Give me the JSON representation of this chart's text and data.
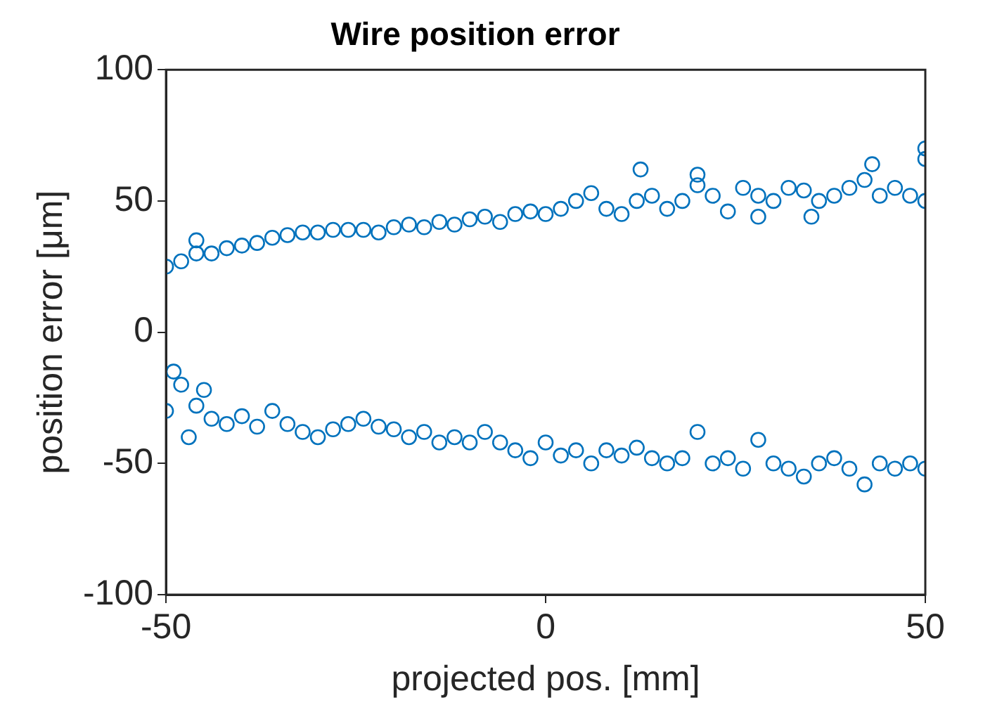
{
  "chart_data": {
    "type": "scatter",
    "title": "Wire position error",
    "xlabel": "projected pos. [mm]",
    "ylabel": "position error [μm]",
    "xlim": [
      -50,
      50
    ],
    "xticks": [
      -50,
      0,
      50
    ],
    "ylim": [
      -100,
      100
    ],
    "yticks": [
      -100,
      -50,
      0,
      50,
      100
    ],
    "grid": false,
    "legend": false,
    "marker": "circle",
    "series": [
      {
        "color": "#0072bd",
        "x": [
          -50,
          -48,
          -46,
          -46,
          -44,
          -42,
          -40,
          -38,
          -36,
          -34,
          -32,
          -30,
          -28,
          -26,
          -24,
          -22,
          -20,
          -18,
          -16,
          -14,
          -12,
          -10,
          -8,
          -6,
          -4,
          -2,
          0,
          2,
          4,
          6,
          8,
          10,
          12,
          12.5,
          14,
          16,
          18,
          20,
          20,
          22,
          24,
          26,
          28,
          28,
          30,
          32,
          34,
          35,
          36,
          38,
          40,
          42,
          43,
          44,
          46,
          48,
          50,
          50,
          50
        ],
        "values": [
          25,
          27,
          30,
          35,
          30,
          32,
          33,
          34,
          36,
          37,
          38,
          38,
          39,
          39,
          39,
          38,
          40,
          41,
          40,
          42,
          41,
          43,
          44,
          42,
          45,
          46,
          45,
          47,
          50,
          53,
          47,
          45,
          50,
          62,
          52,
          47,
          50,
          56,
          60,
          52,
          46,
          55,
          52,
          44,
          50,
          55,
          54,
          44,
          50,
          52,
          55,
          58,
          64,
          52,
          55,
          52,
          50,
          70,
          66
        ]
      },
      {
        "color": "#0072bd",
        "x": [
          -50,
          -49,
          -48,
          -47,
          -46,
          -45,
          -44,
          -42,
          -40,
          -38,
          -36,
          -34,
          -32,
          -30,
          -28,
          -26,
          -24,
          -22,
          -20,
          -18,
          -16,
          -14,
          -12,
          -10,
          -8,
          -6,
          -4,
          -2,
          0,
          2,
          4,
          6,
          8,
          10,
          12,
          14,
          16,
          18,
          20,
          22,
          24,
          26,
          28,
          30,
          32,
          34,
          36,
          38,
          40,
          42,
          44,
          46,
          48,
          50
        ],
        "values": [
          -30,
          -15,
          -20,
          -40,
          -28,
          -22,
          -33,
          -35,
          -32,
          -36,
          -30,
          -35,
          -38,
          -40,
          -37,
          -35,
          -33,
          -36,
          -37,
          -40,
          -38,
          -42,
          -40,
          -42,
          -38,
          -42,
          -45,
          -48,
          -42,
          -47,
          -45,
          -50,
          -45,
          -47,
          -44,
          -48,
          -50,
          -48,
          -38,
          -50,
          -48,
          -52,
          -41,
          -50,
          -52,
          -55,
          -50,
          -48,
          -52,
          -58,
          -50,
          -52,
          -50,
          -52
        ]
      }
    ]
  }
}
